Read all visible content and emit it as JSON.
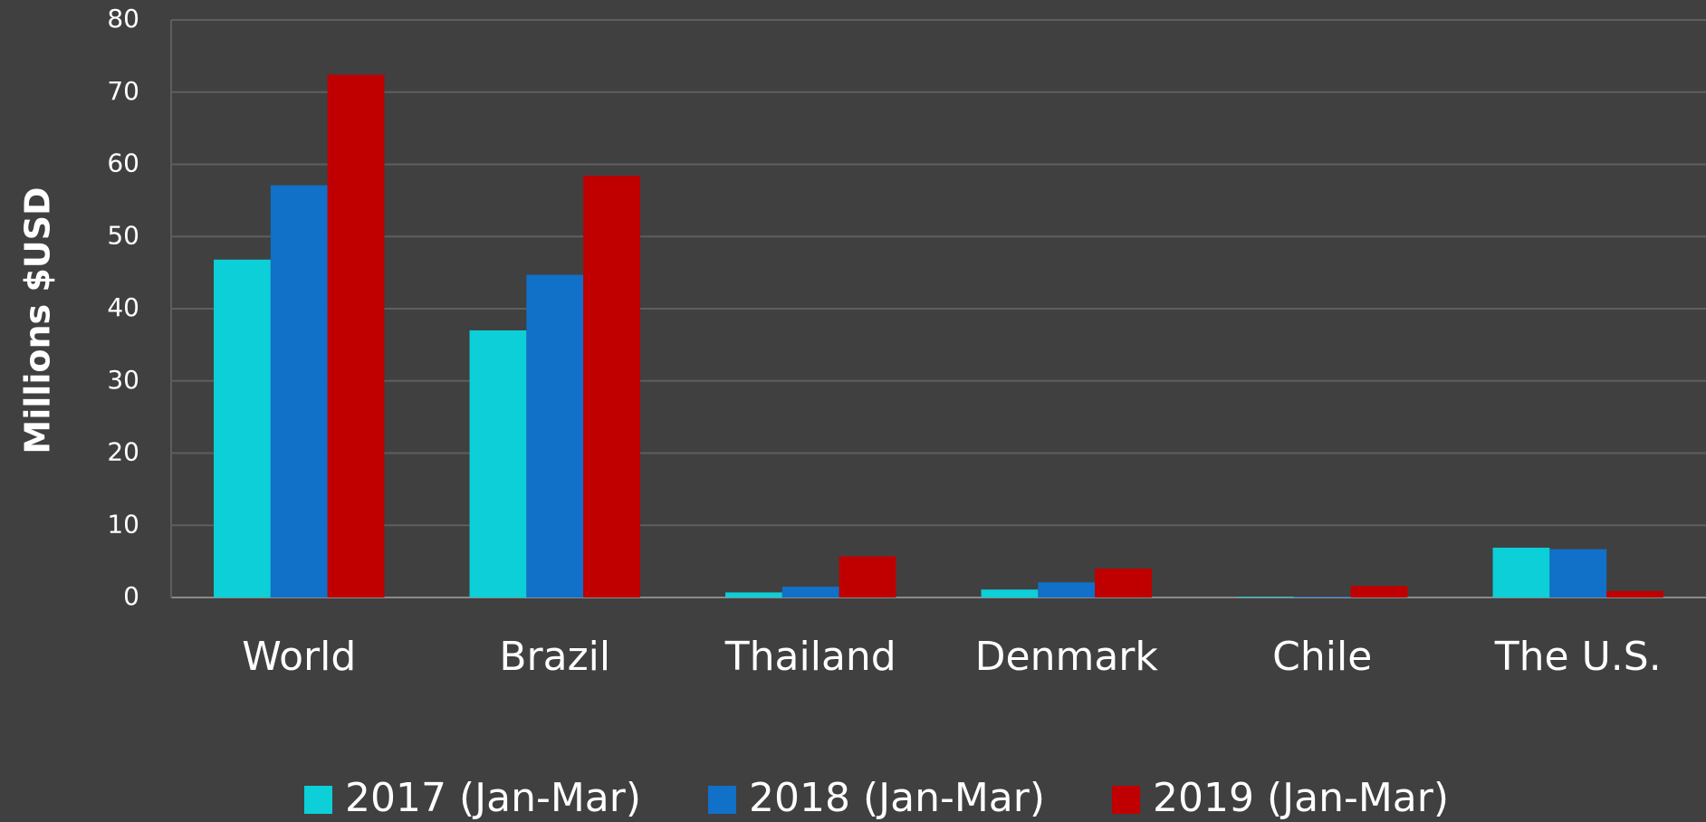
{
  "chart_data": {
    "type": "bar",
    "y_label": "Millions $USD",
    "categories": [
      "World",
      "Brazil",
      "Thailand",
      "Denmark",
      "Chile",
      "The U.S."
    ],
    "series": [
      {
        "name": "2017 (Jan-Mar)",
        "color": "#0ccfd8",
        "values": [
          46.8,
          37.0,
          0.7,
          1.1,
          0.1,
          6.9
        ]
      },
      {
        "name": "2018 (Jan-Mar)",
        "color": "#1170c8",
        "values": [
          57.1,
          44.7,
          1.5,
          2.1,
          0.1,
          6.7
        ]
      },
      {
        "name": "2019 (Jan-Mar)",
        "color": "#c00000",
        "values": [
          72.4,
          58.4,
          5.7,
          4.0,
          1.6,
          0.9
        ]
      }
    ],
    "ylim": [
      0,
      80
    ],
    "yticks": [
      0,
      10,
      20,
      30,
      40,
      50,
      60,
      70,
      80
    ],
    "grid": true,
    "legend": "bottom"
  }
}
